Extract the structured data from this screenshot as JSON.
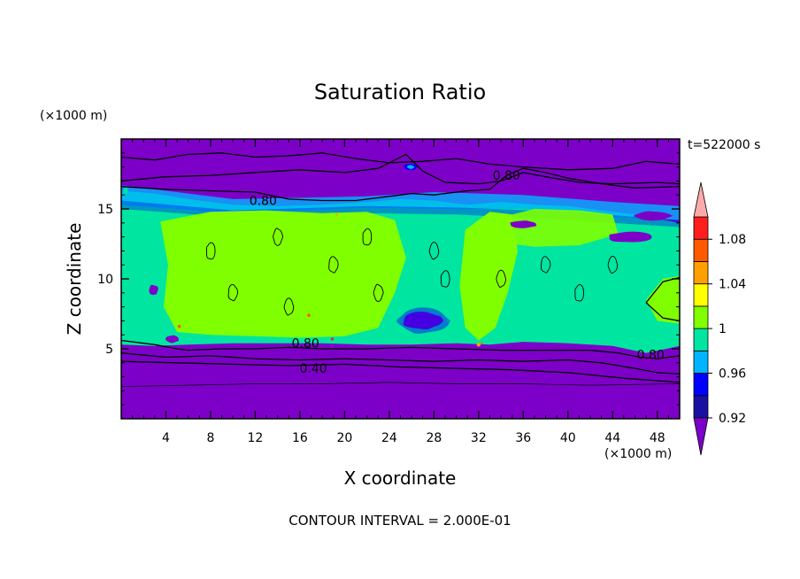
{
  "chart_data": {
    "type": "heatmap",
    "title": "Saturation Ratio",
    "xlabel": "X coordinate",
    "ylabel": "Z coordinate",
    "x_unit": "(×1000 m)",
    "y_unit": "(×1000 m)",
    "time_label": "t=522000 s",
    "footer": "CONTOUR INTERVAL = 2.000E-01",
    "xlim": [
      0,
      50
    ],
    "ylim": [
      0,
      20
    ],
    "x_ticks": [
      4,
      8,
      12,
      16,
      20,
      24,
      28,
      32,
      36,
      40,
      44,
      48
    ],
    "y_ticks": [
      5,
      10,
      15
    ],
    "colorbar": {
      "levels": [
        0.92,
        0.94,
        0.96,
        0.98,
        1.0,
        1.02,
        1.04,
        1.06,
        1.08,
        1.1
      ],
      "labels": [
        "0.92",
        "0.96",
        "1",
        "1.04",
        "1.08"
      ],
      "label_values": [
        0.92,
        0.96,
        1.0,
        1.04,
        1.08
      ],
      "colors": [
        "#1a0fa0",
        "#0000ff",
        "#00b4ff",
        "#00e6a0",
        "#80ff00",
        "#ffff00",
        "#ffa000",
        "#ff5a00",
        "#ff1e1e"
      ],
      "under_color": "#7d00c8",
      "over_color": "#ffaaaa"
    },
    "contour_labels": [
      {
        "text": "0.80",
        "x": 12.7,
        "y": 15.6
      },
      {
        "text": "0.80",
        "x": 34.5,
        "y": 17.4
      },
      {
        "text": "0.80",
        "x": 16.5,
        "y": 5.4
      },
      {
        "text": "0.40",
        "x": 17.2,
        "y": 3.6
      },
      {
        "text": "0.80",
        "x": 47.4,
        "y": 4.6
      }
    ],
    "regions": {
      "upper_dry_layer_z": [
        16.5,
        20
      ],
      "moist_layer_z": [
        5.2,
        16.0
      ],
      "lower_dry_layer_z": [
        0,
        5.2
      ],
      "ice_saturated_x": [
        [
          4,
          26
        ],
        [
          31,
          35
        ]
      ]
    }
  }
}
